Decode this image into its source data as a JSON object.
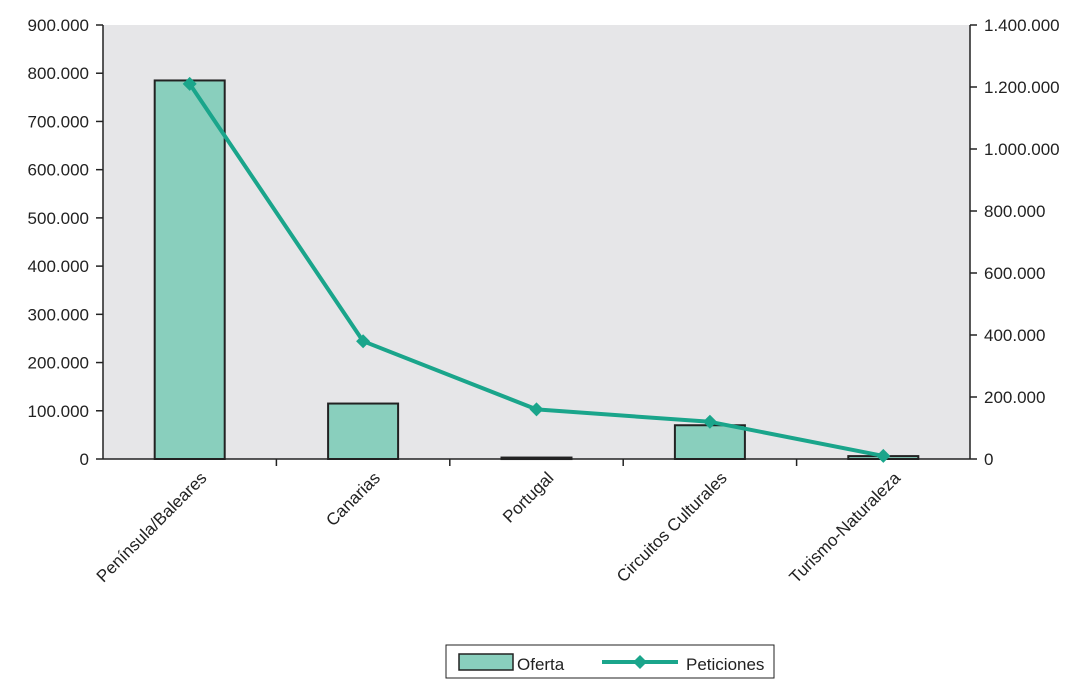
{
  "chart_data": {
    "type": "bar",
    "categories": [
      "Península/Baleares",
      "Canarias",
      "Portugal",
      "Circuitos Culturales",
      "Turismo-Naturaleza"
    ],
    "series": [
      {
        "name": "Oferta",
        "type": "bar",
        "axis": "left",
        "values": [
          785000,
          115000,
          3000,
          70000,
          6000
        ]
      },
      {
        "name": "Peticiones",
        "type": "line",
        "axis": "right",
        "values": [
          1210000,
          380000,
          160000,
          120000,
          10000
        ]
      }
    ],
    "y_left": {
      "ylim": [
        0,
        900000
      ],
      "ticks": [
        "0",
        "100.000",
        "200.000",
        "300.000",
        "400.000",
        "500.000",
        "600.000",
        "700.000",
        "800.000",
        "900.000"
      ]
    },
    "y_right": {
      "ylim": [
        0,
        1400000
      ],
      "ticks": [
        "0",
        "200.000",
        "400.000",
        "600.000",
        "800.000",
        "1.000.000",
        "1.200.000",
        "1.400.000"
      ]
    },
    "title": "",
    "xlabel": "",
    "ylabel": "",
    "legend_placement": "bottom-center",
    "grid": false,
    "colors": {
      "plot_background": "#e6e6e8",
      "bar_fill": "#89cfbd",
      "line": "#1aa58b",
      "marker": "#1aa58b",
      "axis": "#222222"
    }
  }
}
